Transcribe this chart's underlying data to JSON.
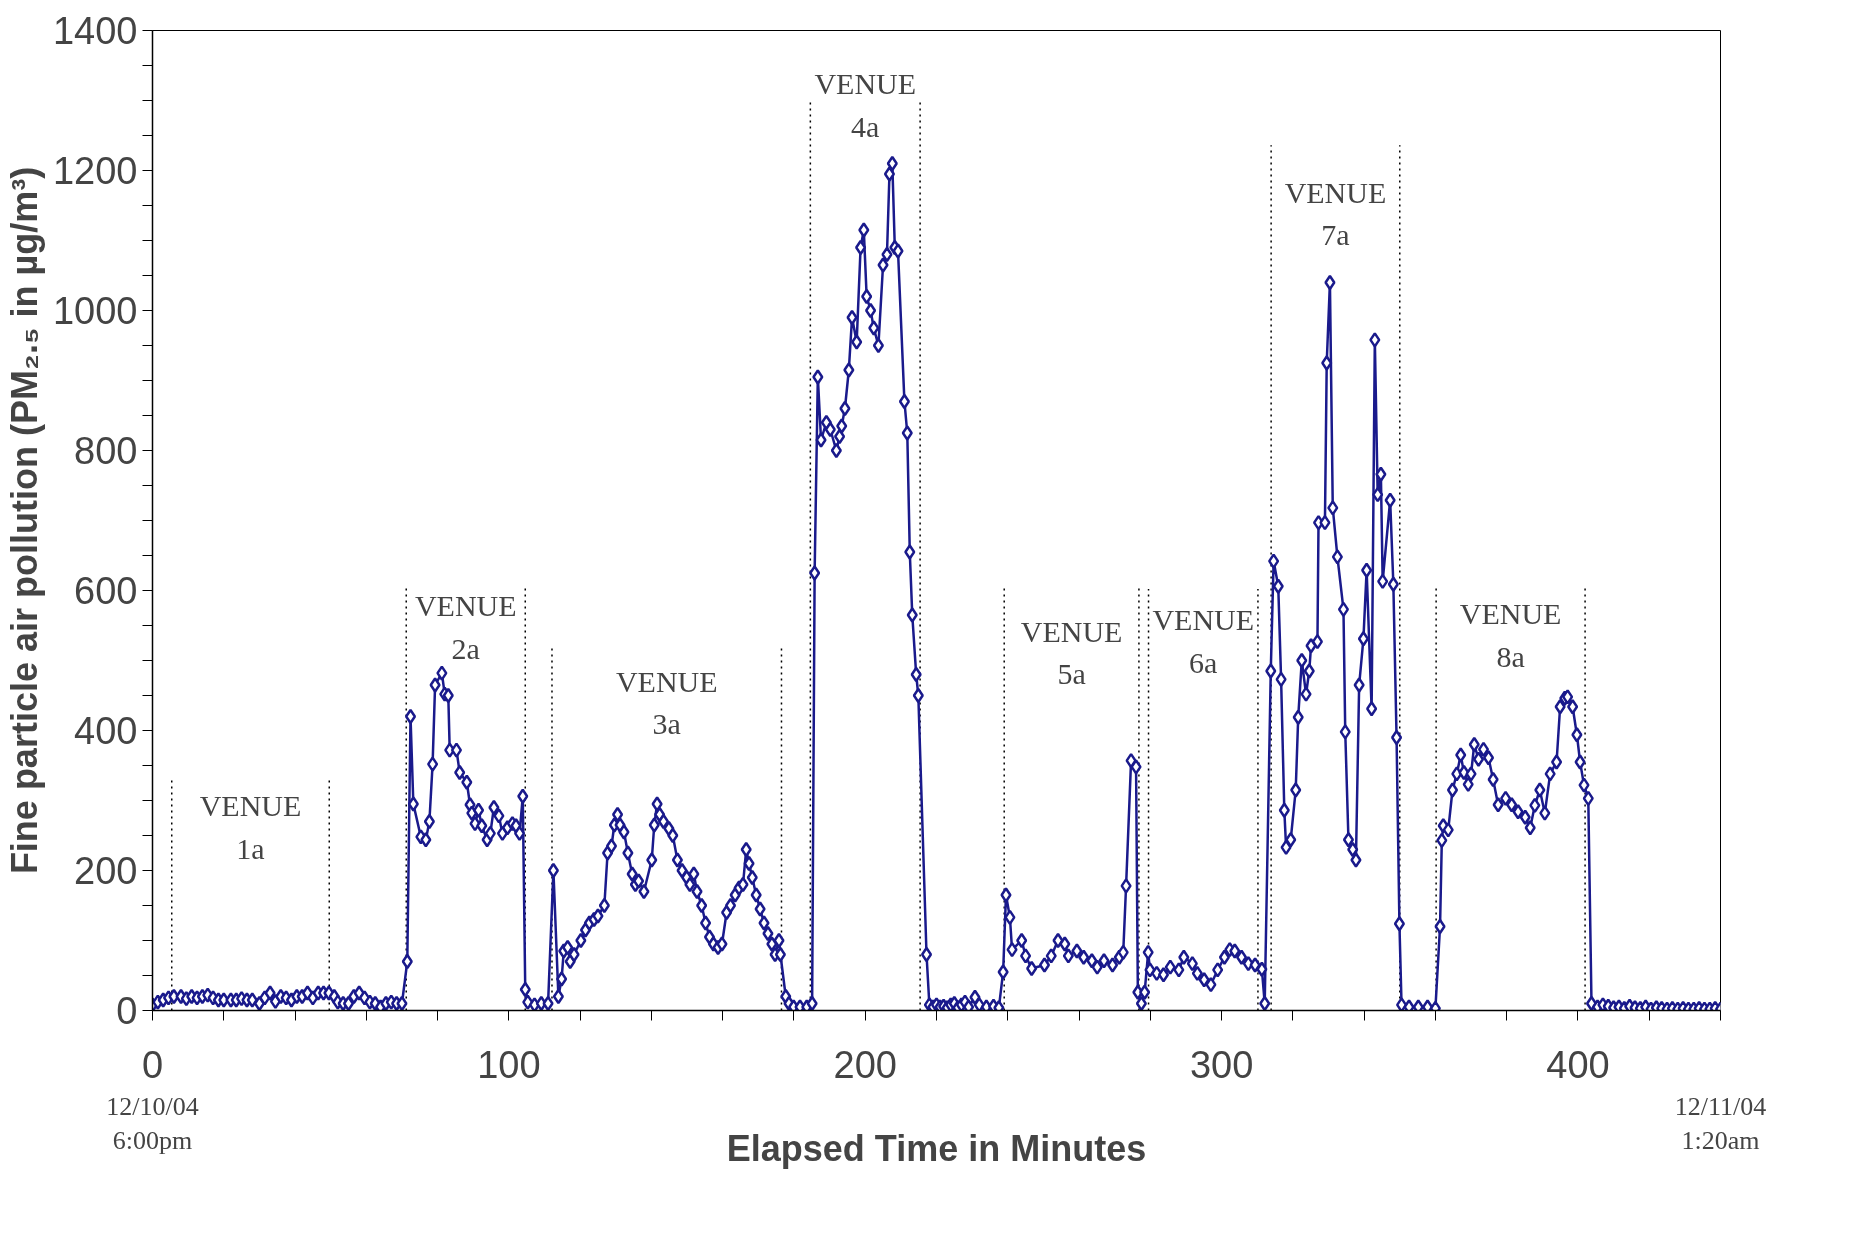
{
  "chart_data": {
    "type": "line",
    "xlabel": "Elapsed Time in Minutes",
    "ylabel": "Fine particle air pollution (PM₂.₅ in µg/m³)",
    "xlim": [
      0,
      440
    ],
    "ylim": [
      0,
      1400
    ],
    "xticks": [
      0,
      {
        "value": 20,
        "label": null
      },
      {
        "value": 40,
        "label": null
      },
      {
        "value": 60,
        "label": null
      },
      {
        "value": 80,
        "label": null
      },
      100,
      {
        "value": 120,
        "label": null
      },
      {
        "value": 140,
        "label": null
      },
      {
        "value": 160,
        "label": null
      },
      {
        "value": 180,
        "label": null
      },
      200,
      {
        "value": 220,
        "label": null
      },
      {
        "value": 240,
        "label": null
      },
      {
        "value": 260,
        "label": null
      },
      {
        "value": 280,
        "label": null
      },
      300,
      {
        "value": 320,
        "label": null
      },
      {
        "value": 340,
        "label": null
      },
      {
        "value": 360,
        "label": null
      },
      {
        "value": 380,
        "label": null
      },
      400,
      {
        "value": 420,
        "label": null
      },
      {
        "value": 440,
        "label": null
      }
    ],
    "yticks": [
      0,
      {
        "value": 50,
        "label": null
      },
      {
        "value": 100,
        "label": null
      },
      {
        "value": 150,
        "label": null
      },
      200,
      {
        "value": 250,
        "label": null
      },
      {
        "value": 300,
        "label": null
      },
      {
        "value": 350,
        "label": null
      },
      400,
      {
        "value": 450,
        "label": null
      },
      {
        "value": 500,
        "label": null
      },
      {
        "value": 550,
        "label": null
      },
      600,
      {
        "value": 650,
        "label": null
      },
      {
        "value": 700,
        "label": null
      },
      {
        "value": 750,
        "label": null
      },
      800,
      {
        "value": 850,
        "label": null
      },
      {
        "value": 900,
        "label": null
      },
      {
        "value": 950,
        "label": null
      },
      1000,
      {
        "value": 1050,
        "label": null
      },
      {
        "value": 1100,
        "label": null
      },
      {
        "value": 1150,
        "label": null
      },
      1200,
      {
        "value": 1250,
        "label": null
      },
      {
        "value": 1300,
        "label": null
      },
      {
        "value": 1350,
        "label": null
      },
      1400
    ],
    "grid": false,
    "marker": "diamond",
    "line_style": "solid",
    "series": [
      {
        "color": "#1a1a8c",
        "x": [
          0,
          1.5,
          3,
          4.5,
          6,
          8,
          9.5,
          11,
          12.5,
          14,
          15.5,
          17,
          18.5,
          20,
          22,
          23.5,
          25,
          26.5,
          28,
          30,
          31.5,
          33,
          34.5,
          36,
          37.5,
          39,
          40.5,
          42,
          43.5,
          45,
          46.5,
          48,
          49.5,
          51,
          52,
          53.5,
          55,
          56.5,
          58,
          59.5,
          61,
          62.5,
          64,
          65.5,
          67,
          68.5,
          70,
          71.5,
          72.4,
          73.2,
          75.3,
          76.7,
          77.7,
          78.6,
          79.3,
          81.2,
          82,
          83,
          83.4,
          85.3,
          86.2,
          88.2,
          89.1,
          89.6,
          90.5,
          91.5,
          92.4,
          93.9,
          94.8,
          95.8,
          97.2,
          98.2,
          99.6,
          101,
          102,
          103,
          103.9,
          104.6,
          105.3,
          107.2,
          109.1,
          111,
          112.5,
          113.9,
          114.8,
          115.4,
          116.5,
          117.2,
          118.3,
          120.2,
          121.5,
          122.6,
          123.9,
          125,
          126.8,
          127.7,
          128.8,
          129.6,
          130.5,
          131.2,
          132.3,
          133.4,
          134.6,
          135.5,
          136.4,
          137.9,
          140.1,
          140.8,
          141.6,
          142.3,
          143.4,
          144.9,
          146,
          147.3,
          148.6,
          149.9,
          150.8,
          151.9,
          152.8,
          154.1,
          155.2,
          156.3,
          157.4,
          158.7,
          159.8,
          161.1,
          162.2,
          163.5,
          164.6,
          165.7,
          166.6,
          167.4,
          168.3,
          169.4,
          170.5,
          171.6,
          172.7,
          173.8,
          174.7,
          175.8,
          176.2,
          177.7,
          178.6,
          179.9,
          181.7,
          183.6,
          185.1,
          185.8,
          186.7,
          187.6,
          189.1,
          190.2,
          191.9,
          192.8,
          193.4,
          194.3,
          195.4,
          196.3,
          197.6,
          198.7,
          199.6,
          200.4,
          201.5,
          202.4,
          203.7,
          205,
          206.1,
          206.8,
          207.6,
          208.3,
          209.2,
          211,
          211.8,
          212.5,
          213.2,
          214.3,
          214.9,
          217.2,
          218,
          219,
          220,
          221,
          222,
          223,
          224,
          225,
          226,
          227,
          228,
          229,
          230.8,
          232,
          234,
          236,
          237.5,
          238.7,
          239.5,
          240.6,
          241.2,
          243.9,
          245,
          246.7,
          250.3,
          252.2,
          254.1,
          256,
          257,
          259.4,
          261.3,
          263.6,
          265.1,
          267,
          269.4,
          271.3,
          272.4,
          273.2,
          274.6,
          276,
          276.5,
          277.5,
          278.4,
          279.4,
          279.9,
          281.8,
          283.7,
          285.6,
          288,
          289.4,
          291.8,
          293.2,
          295.1,
          297,
          298.9,
          300.8,
          302.3,
          303.7,
          305.6,
          307.5,
          309.4,
          311.3,
          312.1,
          313.8,
          314.6,
          315.9,
          316.7,
          317.6,
          318.1,
          319.4,
          320.8,
          321.5,
          322.5,
          323.7,
          324.6,
          325.1,
          326.9,
          327.2,
          329,
          329.5,
          330.4,
          331.2,
          332.5,
          334.2,
          334.7,
          335.6,
          336.8,
          337.7,
          338.6,
          339.8,
          340.7,
          342.1,
          343,
          343.8,
          344.7,
          345.2,
          347.3,
          348.2,
          349.1,
          349.9,
          350.5,
          352.6,
          355.2,
          357.8,
          360,
          361.3,
          361.8,
          362.2,
          363.6,
          364.8,
          366,
          367.1,
          368,
          369.2,
          370,
          370.9,
          372.1,
          373.5,
          374.9,
          376.2,
          377.6,
          379.7,
          381.4,
          383.2,
          385.2,
          386.6,
          387.9,
          389.3,
          390.7,
          392.2,
          394,
          395,
          396.3,
          397.1,
          398.5,
          399.7,
          400.6,
          401.7,
          402.9,
          403.8,
          405.5,
          407,
          408.5,
          410,
          411.5,
          413,
          414.5,
          416,
          417.5,
          419,
          420.5,
          422,
          423.5,
          425,
          426.5,
          428,
          429.5,
          431,
          432.5,
          434,
          435.5,
          437,
          438.5,
          440
        ],
        "values": [
          8,
          12,
          15,
          18,
          20,
          20,
          17,
          20,
          18,
          20,
          22,
          18,
          15,
          15,
          15,
          15,
          17,
          15,
          15,
          10,
          18,
          25,
          13,
          20,
          18,
          15,
          20,
          20,
          25,
          18,
          25,
          25,
          25,
          20,
          12,
          10,
          10,
          20,
          25,
          18,
          12,
          10,
          5,
          10,
          12,
          10,
          10,
          70,
          420,
          295,
          248,
          244,
          270,
          352,
          465,
          482,
          452,
          450,
          372,
          372,
          340,
          326,
          294,
          282,
          267,
          286,
          264,
          244,
          253,
          290,
          278,
          253,
          261,
          267,
          264,
          253,
          306,
          30,
          12,
          8,
          10,
          10,
          200,
          20,
          45,
          85,
          90,
          70,
          80,
          100,
          115,
          125,
          130,
          135,
          150,
          225,
          235,
          265,
          280,
          265,
          255,
          225,
          195,
          180,
          185,
          170,
          215,
          265,
          295,
          280,
          270,
          260,
          250,
          215,
          200,
          190,
          180,
          195,
          170,
          150,
          125,
          105,
          95,
          90,
          95,
          140,
          150,
          165,
          175,
          180,
          230,
          210,
          190,
          165,
          145,
          125,
          110,
          95,
          80,
          100,
          80,
          20,
          10,
          5,
          5,
          5,
          10,
          625,
          905,
          815,
          840,
          830,
          800,
          820,
          835,
          860,
          915,
          990,
          955,
          1090,
          1115,
          1020,
          1000,
          975,
          950,
          1065,
          1080,
          1195,
          1210,
          1090,
          1085,
          870,
          825,
          655,
          565,
          480,
          450,
          80,
          8,
          5,
          8,
          5,
          6,
          4,
          8,
          10,
          4,
          8,
          12,
          5,
          19,
          8,
          5,
          6,
          4,
          55,
          165,
          133,
          87,
          100,
          78,
          60,
          65,
          78,
          100,
          95,
          78,
          85,
          76,
          71,
          62,
          71,
          65,
          76,
          83,
          178,
          357,
          348,
          26,
          10,
          26,
          83,
          58,
          53,
          51,
          62,
          58,
          76,
          67,
          53,
          44,
          37,
          58,
          76,
          87,
          85,
          76,
          67,
          65,
          59,
          10,
          485,
          642,
          606,
          473,
          286,
          233,
          244,
          315,
          419,
          500,
          452,
          485,
          521,
          527,
          697,
          697,
          925,
          1040,
          718,
          648,
          573,
          398,
          244,
          230,
          215,
          465,
          531,
          629,
          431,
          958,
          737,
          766,
          613,
          729,
          609,
          390,
          124,
          8,
          5,
          5,
          5,
          3,
          120,
          243,
          264,
          258,
          315,
          338,
          365,
          340,
          323,
          338,
          380,
          359,
          373,
          361,
          330,
          294,
          303,
          294,
          284,
          276,
          261,
          293,
          315,
          282,
          338,
          355,
          434,
          446,
          448,
          434,
          394,
          355,
          322,
          303,
          10,
          5,
          8,
          6,
          4,
          5,
          3,
          6,
          4,
          3,
          5,
          2,
          4,
          3,
          2,
          3,
          2,
          3,
          2,
          2,
          3,
          2,
          2,
          3,
          2
        ]
      }
    ],
    "ref_lines": [
      {
        "axis": "x",
        "value": 5.4,
        "line_style": "dotted",
        "color": "#000000"
      },
      {
        "axis": "x",
        "value": 49.6,
        "line_style": "dotted",
        "color": "#000000"
      },
      {
        "axis": "x",
        "value": 71.2,
        "line_style": "dotted",
        "color": "#000000"
      },
      {
        "axis": "x",
        "value": 104.6,
        "line_style": "dotted",
        "color": "#000000"
      },
      {
        "axis": "x",
        "value": 112.1,
        "line_style": "dotted",
        "color": "#000000"
      },
      {
        "axis": "x",
        "value": 176.5,
        "line_style": "dotted",
        "color": "#000000"
      },
      {
        "axis": "x",
        "value": 184.6,
        "line_style": "dotted",
        "color": "#000000"
      },
      {
        "axis": "x",
        "value": 215.4,
        "line_style": "dotted",
        "color": "#000000"
      },
      {
        "axis": "x",
        "value": 239,
        "line_style": "dotted",
        "color": "#000000"
      },
      {
        "axis": "x",
        "value": 276.8,
        "line_style": "dotted",
        "color": "#000000"
      },
      {
        "axis": "x",
        "value": 279.5,
        "line_style": "dotted",
        "color": "#000000"
      },
      {
        "axis": "x",
        "value": 310.2,
        "line_style": "dotted",
        "color": "#000000"
      },
      {
        "axis": "x",
        "value": 313.9,
        "line_style": "dotted",
        "color": "#000000"
      },
      {
        "axis": "x",
        "value": 350,
        "line_style": "dotted",
        "color": "#000000"
      },
      {
        "axis": "x",
        "value": 360.2,
        "line_style": "dotted",
        "color": "#000000"
      },
      {
        "axis": "x",
        "value": 402,
        "line_style": "dotted",
        "color": "#000000"
      }
    ],
    "annotations": [
      "VENUE\n1a",
      "VENUE\n2a",
      "VENUE\n3a",
      "VENUE\n4a",
      "VENUE\n5a",
      "VENUE\n6a",
      "VENUE\n7a",
      "VENUE\n8a",
      "12/10/04\n6:00pm",
      "12/11/04\n1:20am"
    ]
  }
}
